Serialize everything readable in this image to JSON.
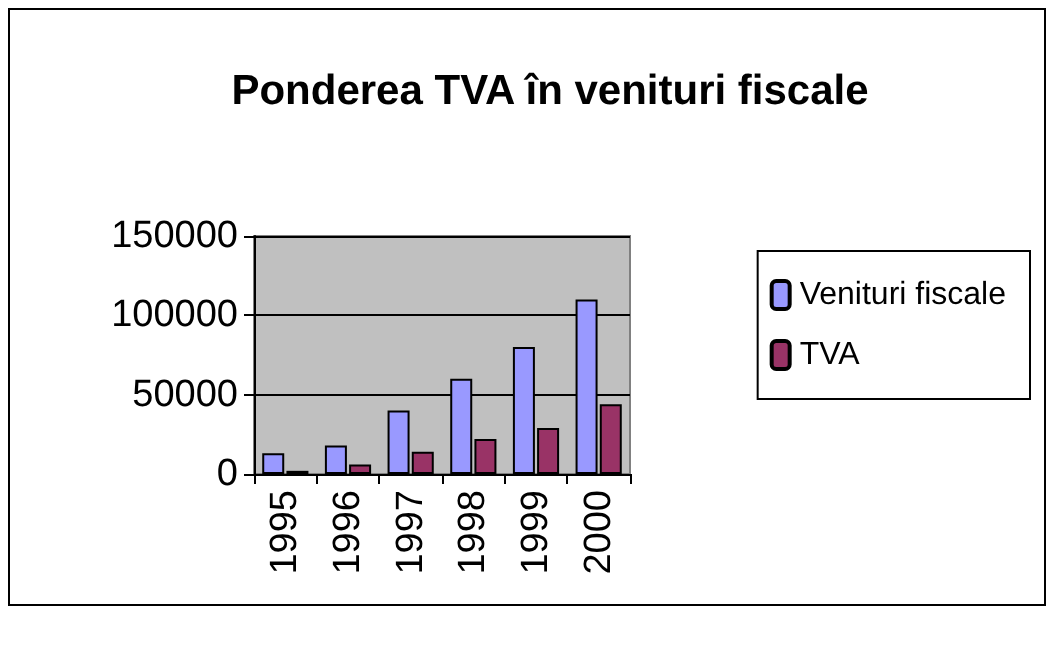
{
  "chart_data": {
    "type": "bar",
    "title": "Ponderea TVA în venituri fiscale",
    "categories": [
      "1995",
      "1996",
      "1997",
      "1998",
      "1999",
      "2000"
    ],
    "series": [
      {
        "name": "Venituri fiscale",
        "color": "#9999ff",
        "values": [
          13000,
          18000,
          40000,
          60000,
          80000,
          110000
        ]
      },
      {
        "name": "TVA",
        "color": "#993366",
        "values": [
          2000,
          6000,
          14000,
          22000,
          29000,
          44000
        ]
      }
    ],
    "ylim": [
      0,
      150000
    ],
    "yticks": [
      0,
      50000,
      100000,
      150000
    ],
    "grid": "y",
    "legend": "right"
  }
}
